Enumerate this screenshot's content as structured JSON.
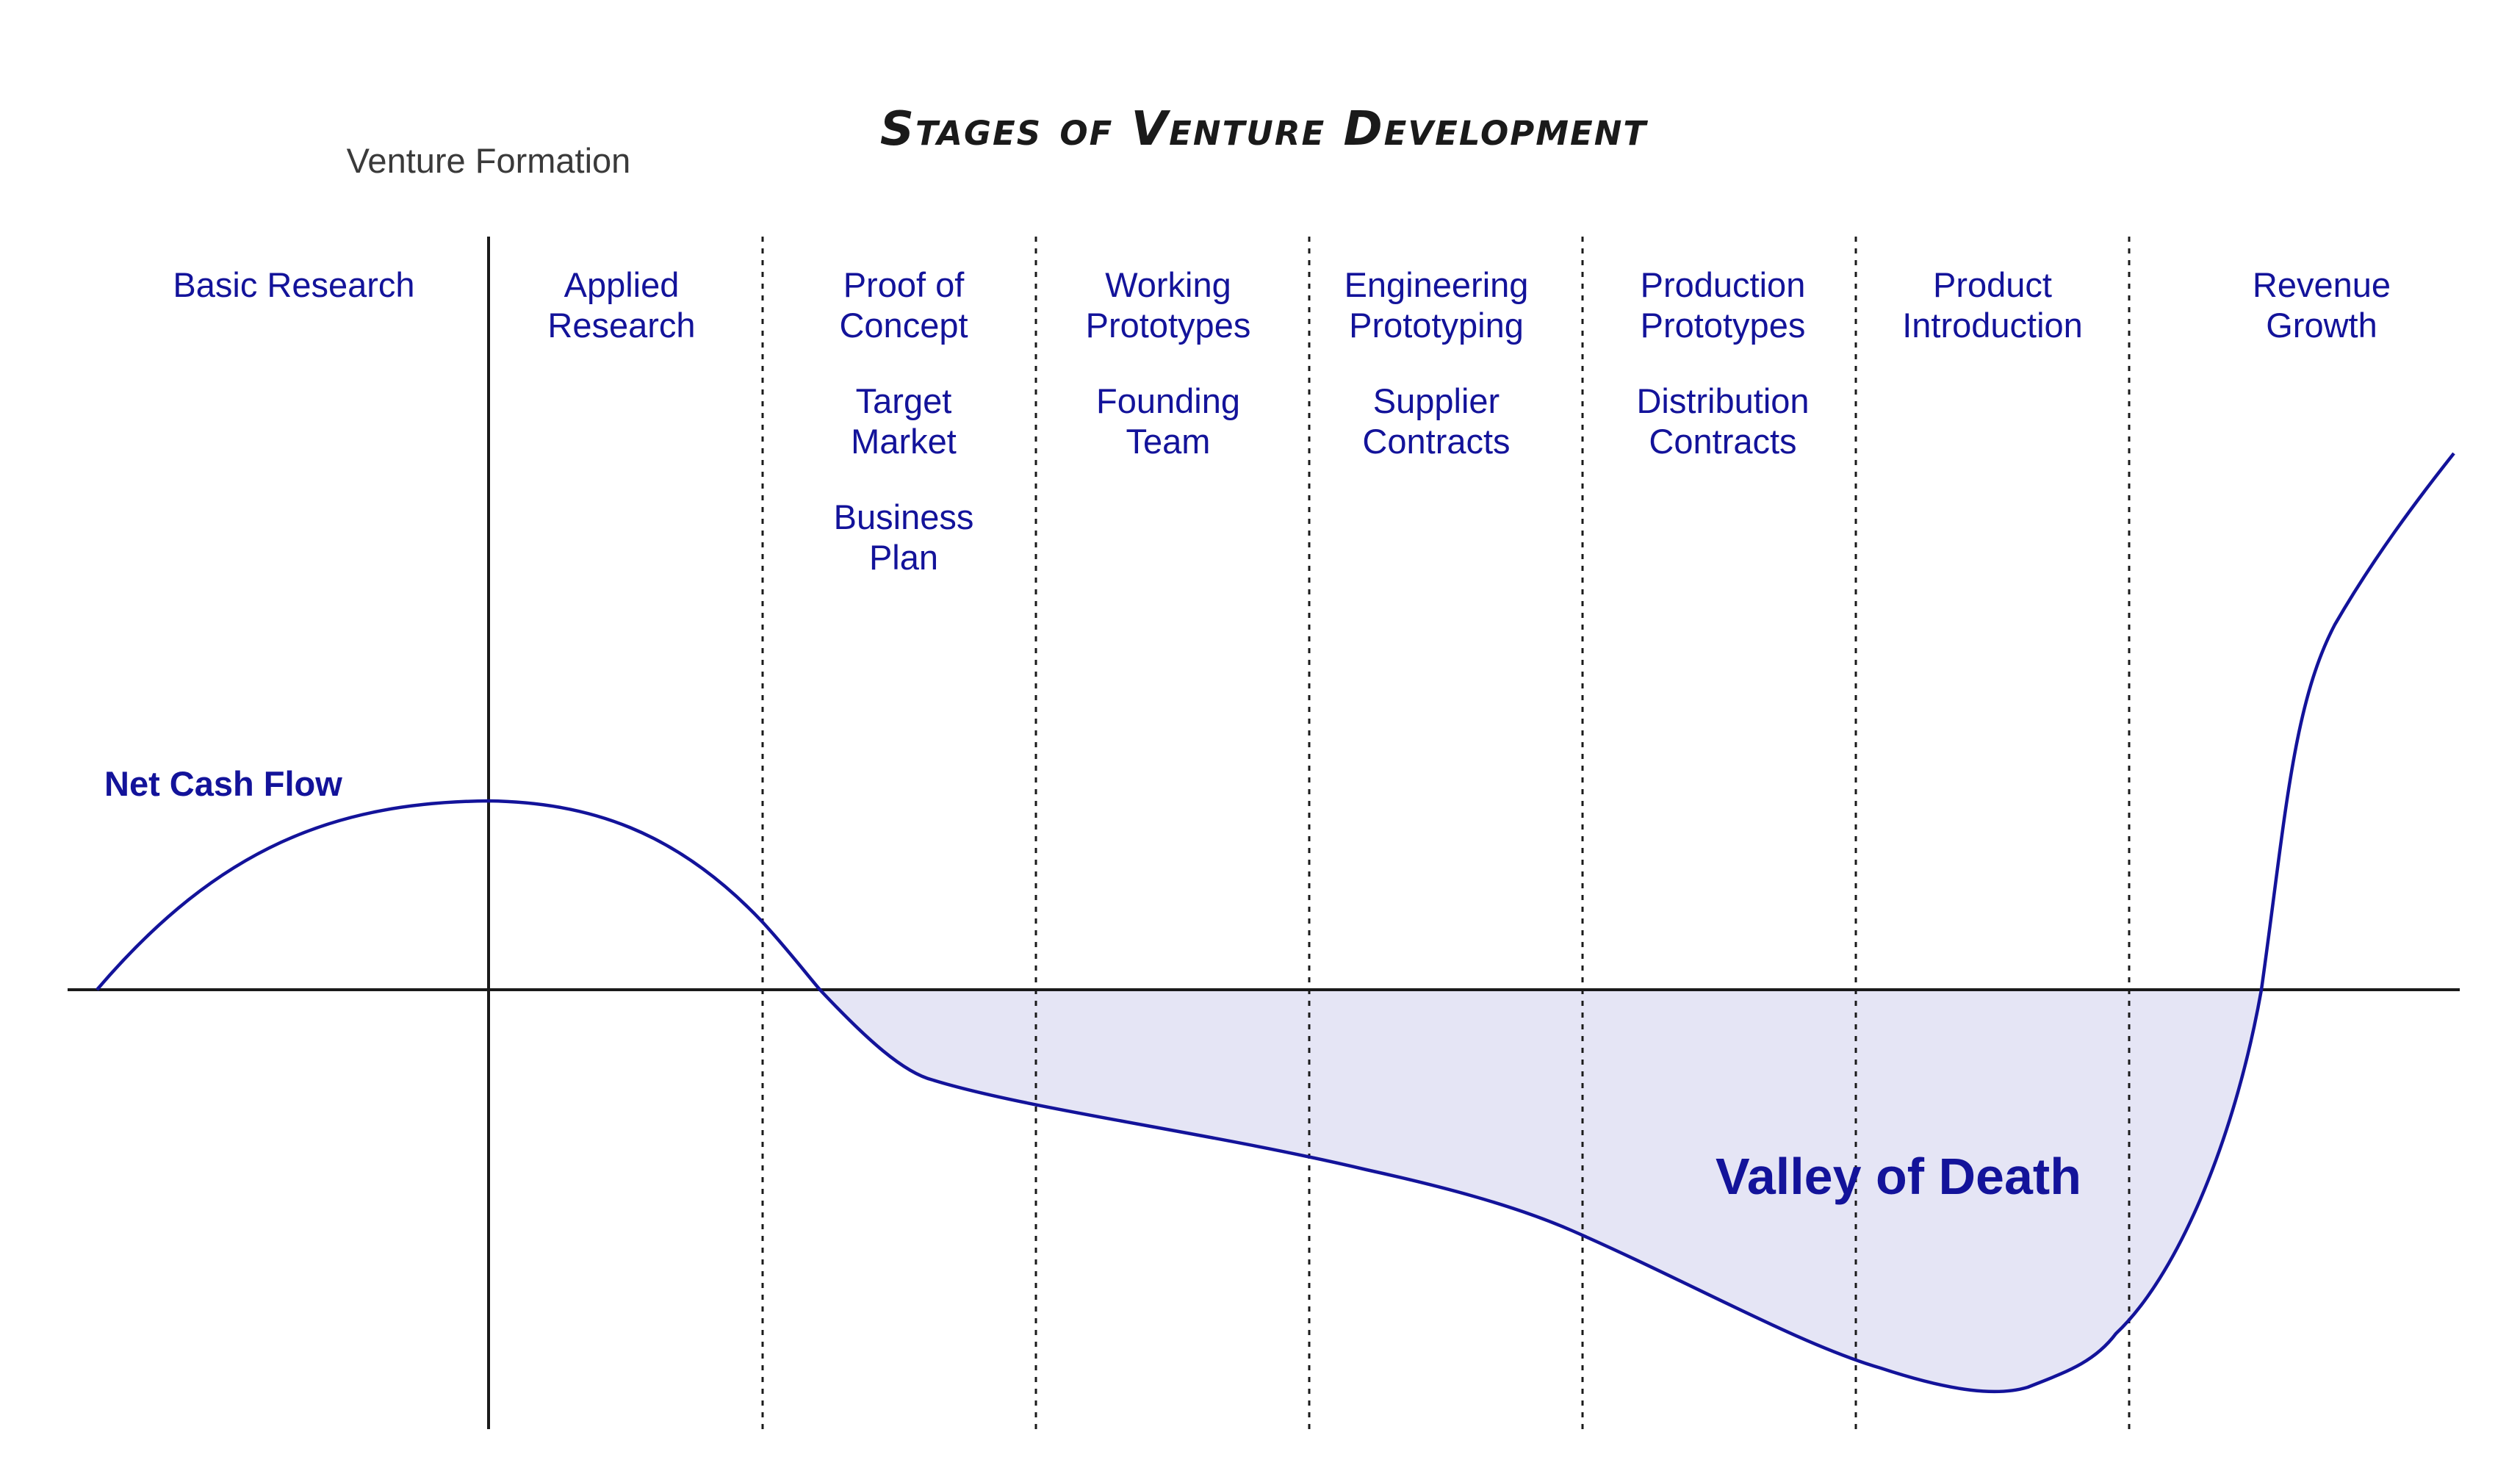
{
  "title": "Stages of Venture Development",
  "venture_formation_label": "Venture Formation",
  "net_cash_flow_label": "Net Cash Flow",
  "valley_label": "Valley of Death",
  "colors": {
    "curve": "#13139a",
    "valley_fill": "#e5e5f5",
    "axis": "#1a1a1a",
    "text_blue": "#13139a",
    "title_text": "#1a1a1a"
  },
  "stages": [
    {
      "id": "basic-research",
      "items": [
        [
          "Basic Research"
        ]
      ]
    },
    {
      "id": "applied-research",
      "items": [
        [
          "Applied",
          "Research"
        ]
      ]
    },
    {
      "id": "proof-of-concept",
      "items": [
        [
          "Proof of",
          "Concept"
        ],
        [
          "Target",
          "Market"
        ],
        [
          "Business",
          "Plan"
        ]
      ]
    },
    {
      "id": "working-prototypes",
      "items": [
        [
          "Working",
          "Prototypes"
        ],
        [
          "Founding",
          "Team"
        ]
      ]
    },
    {
      "id": "engineering-prototyping",
      "items": [
        [
          "Engineering",
          "Prototyping"
        ],
        [
          "Supplier",
          "Contracts"
        ]
      ]
    },
    {
      "id": "production-prototypes",
      "items": [
        [
          "Production",
          "Prototypes"
        ],
        [
          "Distribution",
          "Contracts"
        ]
      ]
    },
    {
      "id": "product-introduction",
      "items": [
        [
          "Product",
          "Introduction"
        ]
      ]
    },
    {
      "id": "revenue-growth",
      "items": [
        [
          "Revenue",
          "Growth"
        ]
      ]
    }
  ]
}
